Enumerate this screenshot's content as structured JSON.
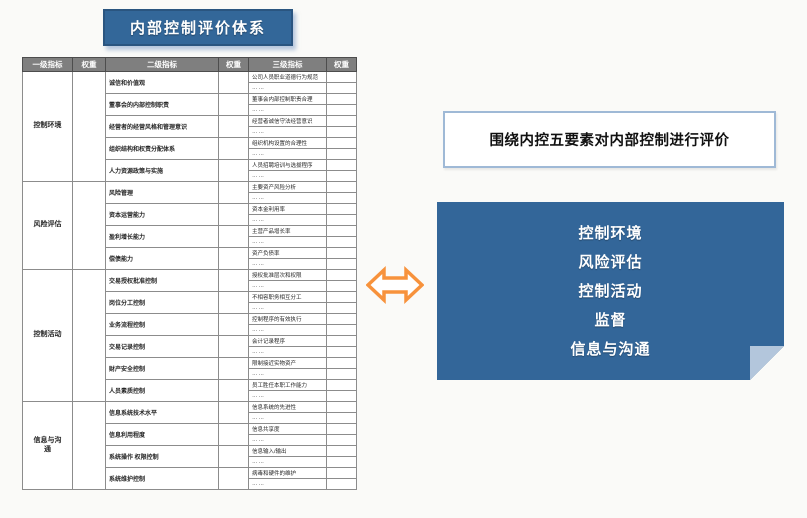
{
  "title": "内部控制评价体系",
  "table": {
    "headers": [
      "一级指标",
      "权重",
      "二级指标",
      "权重",
      "三级指标",
      "权重"
    ],
    "ellipsis": "……",
    "sections": [
      {
        "level1": "控制环境",
        "rows": [
          {
            "level2": "诚信和价值观",
            "level3": "公司人员职业道德行为规范"
          },
          {
            "level2": "董事会的内部控制职责",
            "level3": "董事会内部控制职责合理"
          },
          {
            "level2": "经营者的经营风格和管理意识",
            "level3": "经营者诚信守法经营意识"
          },
          {
            "level2": "组织结构和权责分配体系",
            "level3": "组织机构设置的合理性"
          },
          {
            "level2": "人力资源政策与实施",
            "level3": "人员招聘培训与选拔程序"
          }
        ]
      },
      {
        "level1": "风险评估",
        "rows": [
          {
            "level2": "风险管理",
            "level3": "主要资产风险分析"
          },
          {
            "level2": "资本运营能力",
            "level3": "资本金利用率"
          },
          {
            "level2": "盈利增长能力",
            "level3": "主营产品增长率"
          },
          {
            "level2": "偿债能力",
            "level3": "资产负债率"
          }
        ]
      },
      {
        "level1": "控制活动",
        "rows": [
          {
            "level2": "交易授权批准控制",
            "level3": "授权批准层次和权限"
          },
          {
            "level2": "岗位分工控制",
            "level3": "不相容职务相互分工"
          },
          {
            "level2": "业务流程控制",
            "level3": "控制程序的有效执行"
          },
          {
            "level2": "交易记录控制",
            "level3": "会计记录程序"
          },
          {
            "level2": "财产安全控制",
            "level3": "限制接近实物资产"
          },
          {
            "level2": "人员素质控制",
            "level3": "员工胜任本职工作能力"
          }
        ]
      },
      {
        "level1": "信息与沟通",
        "rows": [
          {
            "level2": "信息系统技术水平",
            "level3": "信息系统的先进性"
          },
          {
            "level2": "信息利用程度",
            "level3": "信息共享度"
          },
          {
            "level2": "系统操作 权限控制",
            "level3": "信息输入/输出"
          },
          {
            "level2": "系统维护控制",
            "level3": "病毒和硬件的维护"
          }
        ]
      }
    ]
  },
  "callout": {
    "text": "围绕内控五要素对内部控制进行评价"
  },
  "five_elements": [
    "控制环境",
    "风险评估",
    "控制活动",
    "监督",
    "信息与沟通"
  ],
  "icons": {
    "arrow": "double-horizontal-arrow"
  },
  "colors": {
    "title_bg": "#336799",
    "table_header_bg": "#7f7f7f",
    "box_bg": "#336699",
    "fold": "#b3c6dc",
    "arrow": "#f7923c",
    "callout_border": "#9fb9d6"
  }
}
